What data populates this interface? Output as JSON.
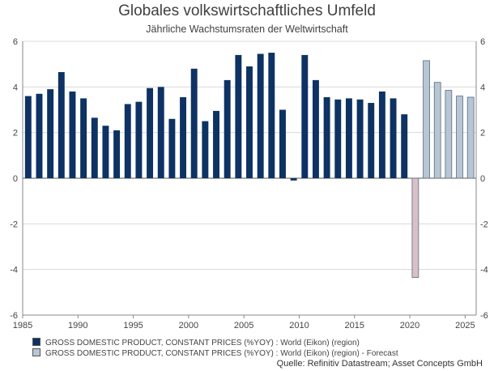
{
  "chart_data": {
    "type": "bar",
    "title": "Globales volkswirtschaftliches Umfeld",
    "subtitle": "Jährliche Wachstumsraten der Weltwirtschaft",
    "xlim": [
      1985,
      2026
    ],
    "ylim": [
      -6,
      6
    ],
    "x_ticks": [
      "1985",
      "1990",
      "1995",
      "2000",
      "2005",
      "2010",
      "2015",
      "2020",
      "2025"
    ],
    "y_ticks": [
      "-6",
      "-4",
      "-2",
      "0",
      "2",
      "4",
      "6"
    ],
    "grid": true,
    "legend_position": "bottom-left",
    "series": [
      {
        "name": "GROSS DOMESTIC PRODUCT, CONSTANT PRICES (%YOY) : World (Eikon) (region)",
        "color": "#0d3263",
        "x": [
          1986,
          1987,
          1988,
          1989,
          1990,
          1991,
          1992,
          1993,
          1994,
          1995,
          1996,
          1997,
          1998,
          1999,
          2000,
          2001,
          2002,
          2003,
          2004,
          2005,
          2006,
          2007,
          2008,
          2009,
          2010,
          2011,
          2012,
          2013,
          2014,
          2015,
          2016,
          2017,
          2018,
          2019,
          2020
        ],
        "values": [
          3.6,
          3.7,
          3.9,
          4.65,
          3.8,
          3.5,
          2.65,
          2.3,
          2.1,
          3.25,
          3.35,
          3.95,
          4.0,
          2.6,
          3.55,
          4.8,
          2.5,
          2.95,
          4.3,
          5.4,
          4.9,
          5.45,
          5.5,
          3.0,
          -0.1,
          5.4,
          4.3,
          3.55,
          3.45,
          3.5,
          3.45,
          3.3,
          3.8,
          3.5,
          2.8
        ]
      },
      {
        "name": "GROSS DOMESTIC PRODUCT, CONSTANT PRICES (%YOY) : World (Eikon) (region) - Forecast",
        "color": "#b7c6d5",
        "negative_color": "#d9c0c8",
        "x": [
          2021,
          2022,
          2023,
          2024,
          2025,
          2026
        ],
        "values": [
          -4.35,
          5.15,
          4.2,
          3.85,
          3.6,
          3.55
        ]
      }
    ],
    "source": "Quelle: Refinitiv Datastream; Asset Concepts GmbH"
  }
}
